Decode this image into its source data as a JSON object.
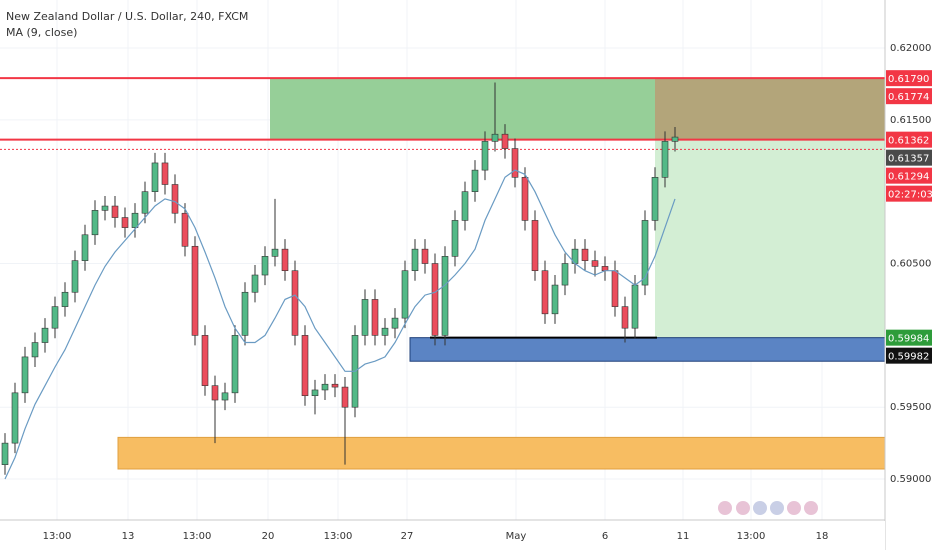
{
  "chart_data": {
    "type": "candlestick",
    "title": "New Zealand Dollar / U.S. Dollar, 240, FXCM",
    "indicator": "MA (9, close)",
    "open": [
      0.591,
      0.5925,
      0.596,
      0.5985,
      0.5995,
      0.6005,
      0.602,
      0.603,
      0.6052,
      0.607,
      0.6087,
      0.609,
      0.6082,
      0.6075,
      0.6085,
      0.61,
      0.612,
      0.6105,
      0.6085,
      0.6062,
      0.6,
      0.5965,
      0.5955,
      0.596,
      0.6,
      0.603,
      0.6042,
      0.6055,
      0.606,
      0.6045,
      0.6,
      0.5958,
      0.5962,
      0.5966,
      0.5964,
      0.595,
      0.6,
      0.6025,
      0.6,
      0.6005,
      0.6012,
      0.6045,
      0.606,
      0.605,
      0.6,
      0.6055,
      0.608,
      0.61,
      0.6115,
      0.6135,
      0.614,
      0.613,
      0.611,
      0.608,
      0.6045,
      0.6015,
      0.6035,
      0.605,
      0.606,
      0.6052,
      0.6048,
      0.6045,
      0.602,
      0.6005,
      0.6035,
      0.608,
      0.611,
      0.6135
    ],
    "high": [
      0.5932,
      0.5967,
      0.5992,
      0.6002,
      0.6012,
      0.6027,
      0.6037,
      0.6059,
      0.6077,
      0.6094,
      0.6097,
      0.6097,
      0.6089,
      0.6092,
      0.6107,
      0.6127,
      0.6127,
      0.6112,
      0.6092,
      0.6069,
      0.6007,
      0.5972,
      0.5967,
      0.6007,
      0.6037,
      0.6049,
      0.6062,
      0.6095,
      0.6067,
      0.6052,
      0.6007,
      0.5969,
      0.5973,
      0.5973,
      0.5971,
      0.6007,
      0.6032,
      0.6032,
      0.6012,
      0.6019,
      0.6052,
      0.6067,
      0.6067,
      0.6057,
      0.6062,
      0.6087,
      0.6107,
      0.6122,
      0.6142,
      0.6176,
      0.6147,
      0.6137,
      0.6117,
      0.6087,
      0.6052,
      0.6042,
      0.6057,
      0.6067,
      0.6067,
      0.6059,
      0.6055,
      0.6052,
      0.6027,
      0.6042,
      0.6087,
      0.6117,
      0.6142,
      0.6145
    ],
    "low": [
      0.5903,
      0.5918,
      0.5953,
      0.5978,
      0.5988,
      0.5998,
      0.6013,
      0.6023,
      0.6045,
      0.6063,
      0.608,
      0.6075,
      0.6068,
      0.6068,
      0.6078,
      0.6093,
      0.6098,
      0.6078,
      0.6055,
      0.5993,
      0.5958,
      0.5925,
      0.5948,
      0.5953,
      0.5993,
      0.6023,
      0.6035,
      0.6048,
      0.6038,
      0.5993,
      0.5951,
      0.5945,
      0.5955,
      0.5957,
      0.591,
      0.5943,
      0.5993,
      0.5993,
      0.5993,
      0.5998,
      0.6005,
      0.6038,
      0.6043,
      0.5993,
      0.5993,
      0.6048,
      0.6073,
      0.6093,
      0.6108,
      0.6128,
      0.6123,
      0.6103,
      0.6073,
      0.6038,
      0.6008,
      0.6008,
      0.6028,
      0.6043,
      0.6045,
      0.6041,
      0.6038,
      0.6013,
      0.5995,
      0.5998,
      0.6028,
      0.6073,
      0.6103,
      0.6128
    ],
    "close": [
      0.5925,
      0.596,
      0.5985,
      0.5995,
      0.6005,
      0.602,
      0.603,
      0.6052,
      0.607,
      0.6087,
      0.609,
      0.6082,
      0.6075,
      0.6085,
      0.61,
      0.612,
      0.6105,
      0.6085,
      0.6062,
      0.6,
      0.5965,
      0.5955,
      0.596,
      0.6,
      0.603,
      0.6042,
      0.6055,
      0.606,
      0.6045,
      0.6,
      0.5958,
      0.5962,
      0.5966,
      0.5964,
      0.595,
      0.6,
      0.6025,
      0.6,
      0.6005,
      0.6012,
      0.6045,
      0.606,
      0.605,
      0.6,
      0.6055,
      0.608,
      0.61,
      0.6115,
      0.6135,
      0.614,
      0.613,
      0.611,
      0.608,
      0.6045,
      0.6015,
      0.6035,
      0.605,
      0.606,
      0.6052,
      0.6048,
      0.6045,
      0.602,
      0.6005,
      0.6035,
      0.608,
      0.611,
      0.6135,
      0.6138
    ],
    "up_color": "#53b987",
    "down_color": "#eb4d5c",
    "ma_values": [
      0.59,
      0.5915,
      0.5935,
      0.5952,
      0.5965,
      0.5978,
      0.599,
      0.6005,
      0.602,
      0.6035,
      0.6048,
      0.6058,
      0.6066,
      0.6074,
      0.6082,
      0.609,
      0.6095,
      0.6093,
      0.6088,
      0.6075,
      0.6058,
      0.604,
      0.602,
      0.6005,
      0.5995,
      0.5995,
      0.6,
      0.6012,
      0.6025,
      0.6028,
      0.602,
      0.6005,
      0.5995,
      0.5985,
      0.5975,
      0.5975,
      0.598,
      0.5982,
      0.5985,
      0.5995,
      0.6008,
      0.602,
      0.6028,
      0.603,
      0.6035,
      0.6042,
      0.605,
      0.606,
      0.608,
      0.6095,
      0.611,
      0.6115,
      0.6112,
      0.61,
      0.6085,
      0.607,
      0.6058,
      0.605,
      0.6045,
      0.6042,
      0.6045,
      0.6045,
      0.604,
      0.6035,
      0.604,
      0.6055,
      0.6075,
      0.6095
    ],
    "ma_color": "#6a9bc3",
    "xlim": [
      -0.5,
      88
    ],
    "xticks": [
      {
        "value": 5.2,
        "label": "13:00"
      },
      {
        "value": 12.3,
        "label": "13"
      },
      {
        "value": 19.2,
        "label": "13:00"
      },
      {
        "value": 26.3,
        "label": "20"
      },
      {
        "value": 33.3,
        "label": "13:00"
      },
      {
        "value": 40.2,
        "label": "27"
      },
      {
        "value": 51.1,
        "label": "May"
      },
      {
        "value": 60,
        "label": "6"
      },
      {
        "value": 67.8,
        "label": "11"
      },
      {
        "value": 74.6,
        "label": "13:00"
      },
      {
        "value": 81.7,
        "label": "18"
      }
    ],
    "ylim": [
      0.58715,
      0.62334
    ],
    "yticks": [
      {
        "value": 0.62,
        "label": "0.62000"
      },
      {
        "value": 0.615,
        "label": "0.61500"
      },
      {
        "value": 0.605,
        "label": "0.60500"
      },
      {
        "value": 0.595,
        "label": "0.59500"
      },
      {
        "value": 0.59,
        "label": "0.59000"
      }
    ],
    "grid": true,
    "zones": [
      {
        "low": 0.61362,
        "high": 0.6179,
        "color": "#96cf98"
      },
      {
        "low": 0.61362,
        "high": 0.6179,
        "color": "#b3a57a"
      },
      {
        "low": 0.59984,
        "high": 0.61362,
        "color": "#d3eed4"
      },
      {
        "low": 0.5982,
        "high": 0.59984,
        "color": "#5b84c4"
      },
      {
        "low": 0.5907,
        "high": 0.5929,
        "color": "#f7bd62"
      }
    ],
    "levels": [
      {
        "value": 0.6179,
        "label": "0.61790",
        "color": "#f23645",
        "line": "solid",
        "line_color": "#f23645"
      },
      {
        "value": 0.61774,
        "label": "0.61774",
        "color": "#f23645",
        "line": "none"
      },
      {
        "value": 0.61362,
        "label": "0.61362",
        "color": "#f23645",
        "line": "solid",
        "line_color": "#f23645"
      },
      {
        "value": 0.61357,
        "label": "0.61357",
        "color": "#4a4a4a",
        "line": "none"
      },
      {
        "value": 0.61294,
        "label": "0.61294",
        "color": "#f23645",
        "line": "dotted",
        "line_color": "#f23645",
        "countdown": "02:27:03"
      },
      {
        "value": 0.59984,
        "label": "0.59984",
        "color": "#2e9c3a",
        "line": "solid",
        "line_color": "#000000"
      },
      {
        "value": 0.59982,
        "label": "0.59982",
        "color": "#111111",
        "line": "none"
      }
    ]
  }
}
